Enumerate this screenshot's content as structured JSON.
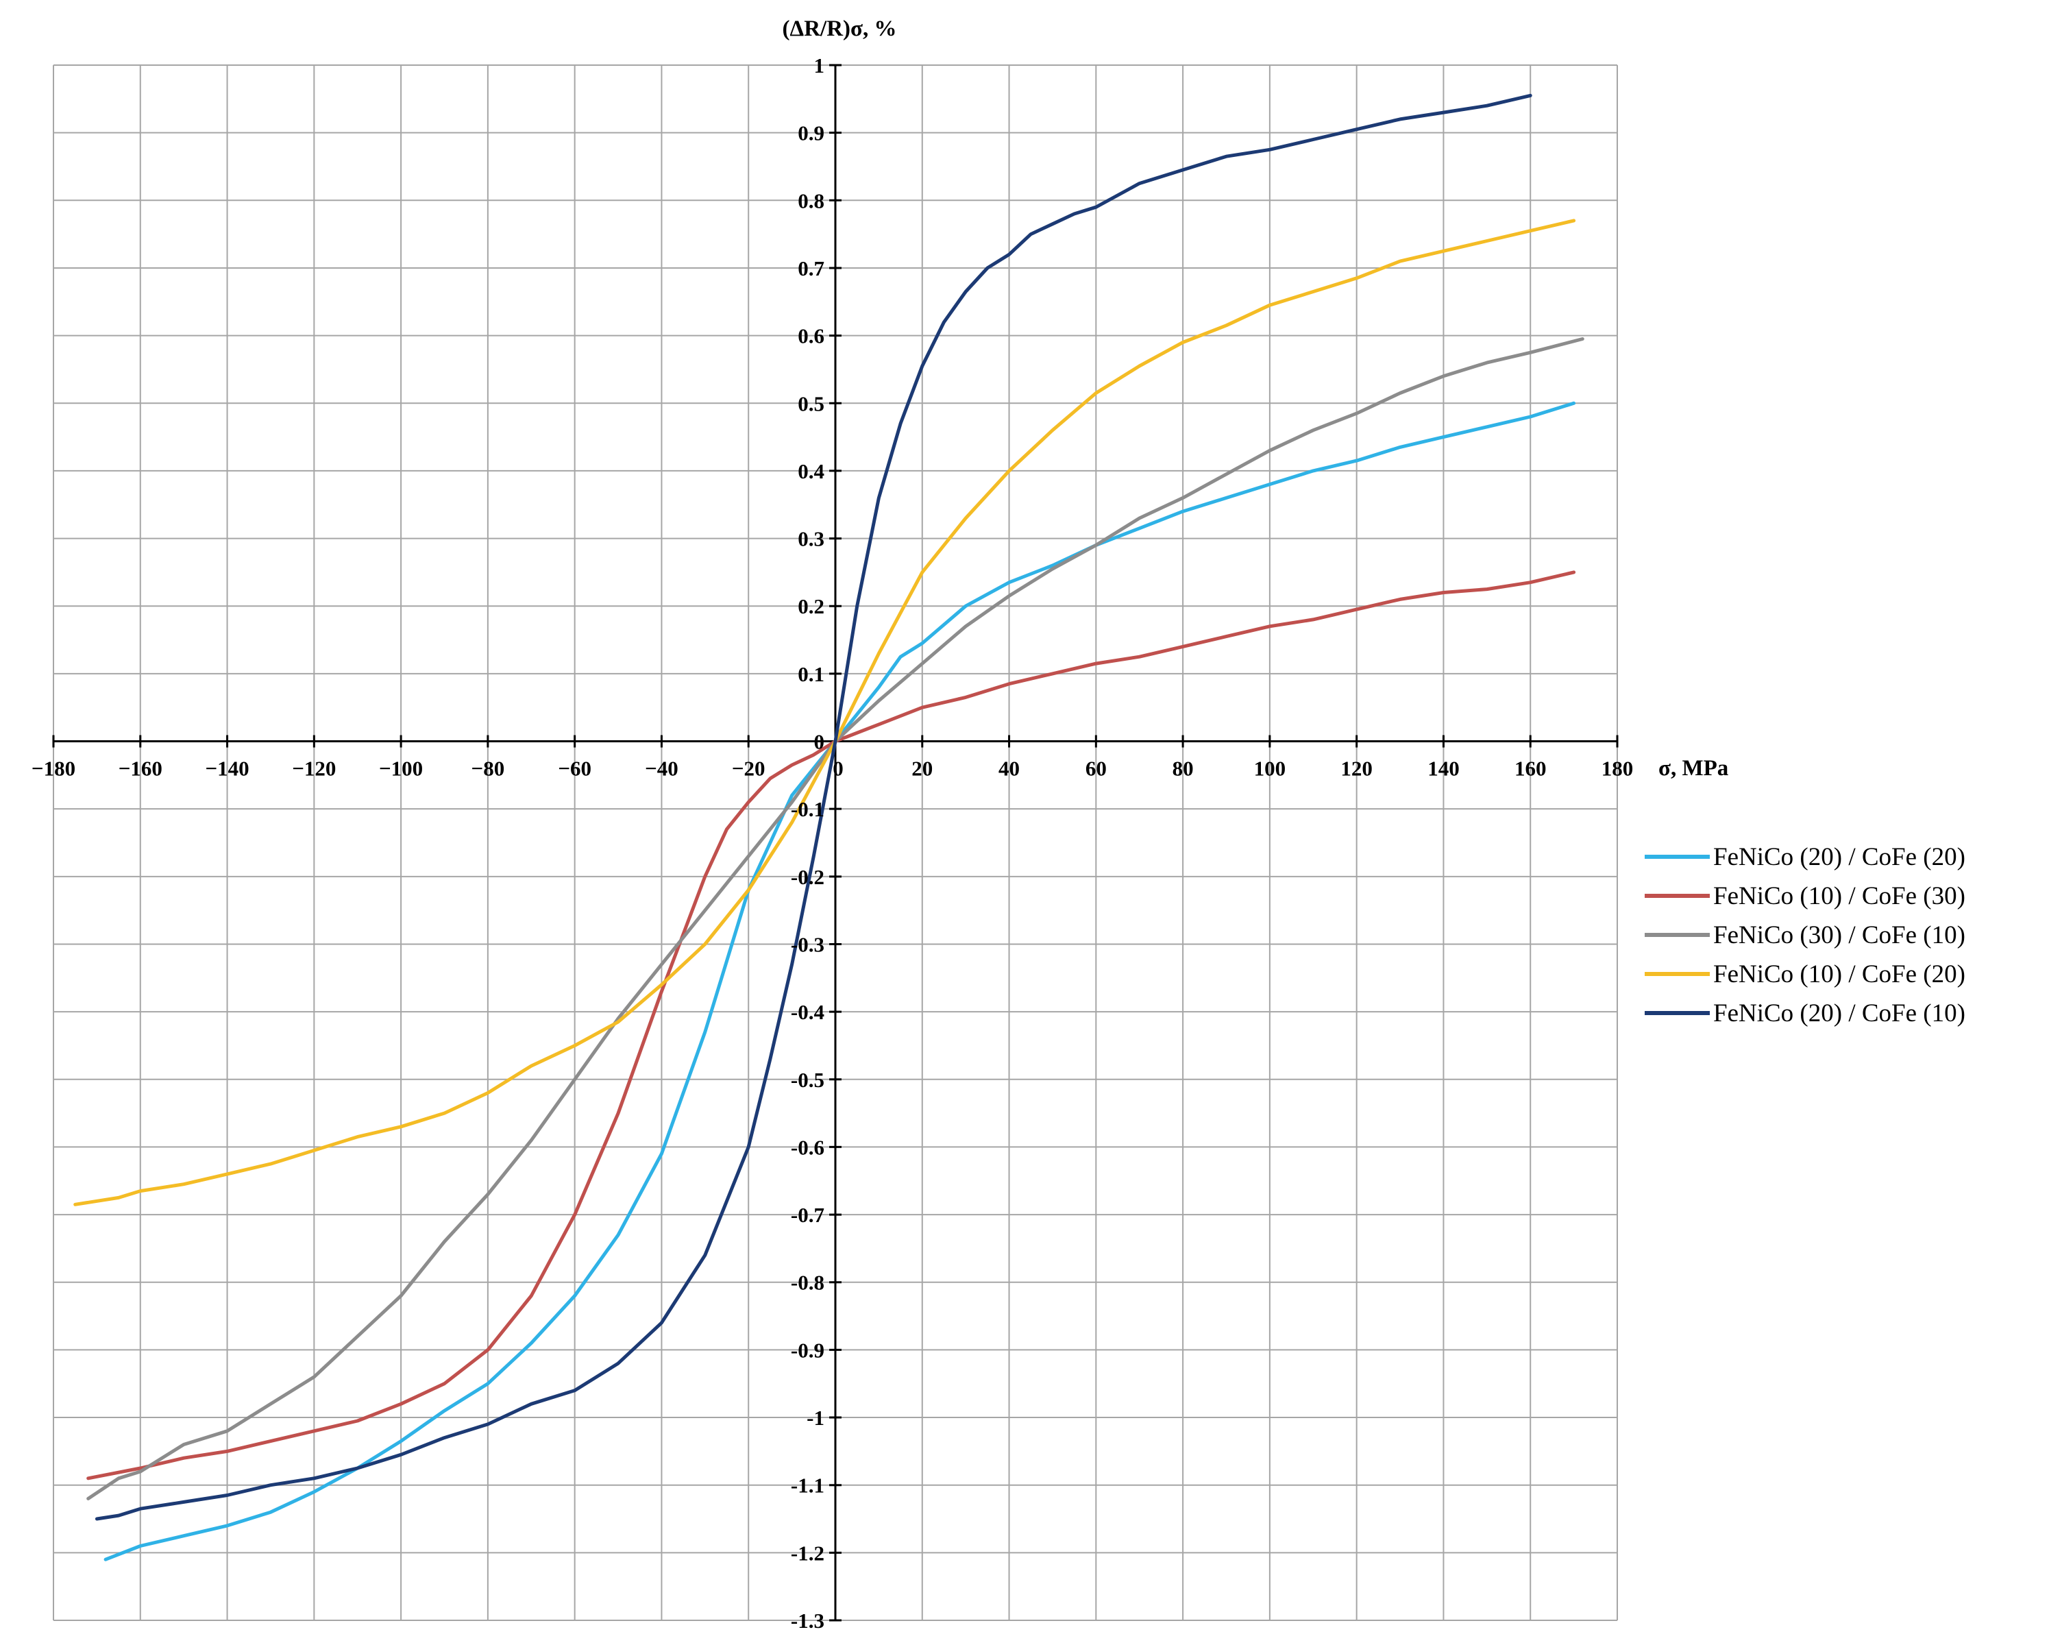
{
  "chart_data": {
    "type": "line",
    "ylabel": "(ΔR/R)σ, %",
    "xlabel": "σ, MPa",
    "xlim": [
      -180,
      180
    ],
    "ylim": [
      -1.3,
      1
    ],
    "grid": true,
    "legend_position": "right",
    "x_ticks": [
      {
        "value": -180,
        "label": "−180"
      },
      {
        "value": -160,
        "label": "−160"
      },
      {
        "value": -140,
        "label": "−140"
      },
      {
        "value": -120,
        "label": "−120"
      },
      {
        "value": -100,
        "label": "−100"
      },
      {
        "value": -80,
        "label": "−80"
      },
      {
        "value": -60,
        "label": "−60"
      },
      {
        "value": -40,
        "label": "−40"
      },
      {
        "value": -20,
        "label": "−20"
      },
      {
        "value": 0,
        "label": "0"
      },
      {
        "value": 20,
        "label": "20"
      },
      {
        "value": 40,
        "label": "40"
      },
      {
        "value": 60,
        "label": "60"
      },
      {
        "value": 80,
        "label": "80"
      },
      {
        "value": 100,
        "label": "100"
      },
      {
        "value": 120,
        "label": "120"
      },
      {
        "value": 140,
        "label": "140"
      },
      {
        "value": 160,
        "label": "160"
      },
      {
        "value": 180,
        "label": "180"
      }
    ],
    "y_ticks": [
      {
        "value": 1,
        "label": "1"
      },
      {
        "value": 0.9,
        "label": "0.9"
      },
      {
        "value": 0.8,
        "label": "0.8"
      },
      {
        "value": 0.7,
        "label": "0.7"
      },
      {
        "value": 0.6,
        "label": "0.6"
      },
      {
        "value": 0.5,
        "label": "0.5"
      },
      {
        "value": 0.4,
        "label": "0.4"
      },
      {
        "value": 0.3,
        "label": "0.3"
      },
      {
        "value": 0.2,
        "label": "0.2"
      },
      {
        "value": 0.1,
        "label": "0.1"
      },
      {
        "value": 0,
        "label": "0"
      },
      {
        "value": -0.1,
        "label": "-0.1"
      },
      {
        "value": -0.2,
        "label": "-0.2"
      },
      {
        "value": -0.3,
        "label": "-0.3"
      },
      {
        "value": -0.4,
        "label": "-0.4"
      },
      {
        "value": -0.5,
        "label": "-0.5"
      },
      {
        "value": -0.6,
        "label": "-0.6"
      },
      {
        "value": -0.7,
        "label": "-0.7"
      },
      {
        "value": -0.8,
        "label": "-0.8"
      },
      {
        "value": -0.9,
        "label": "-0.9"
      },
      {
        "value": -1,
        "label": "-1"
      },
      {
        "value": -1.1,
        "label": "-1.1"
      },
      {
        "value": -1.2,
        "label": "-1.2"
      },
      {
        "value": -1.3,
        "label": "-1.3"
      }
    ],
    "series": [
      {
        "name": "FeNiCo (20) / CoFe (20)",
        "color": "#2fb2e6",
        "x": [
          -168,
          -160,
          -150,
          -140,
          -130,
          -120,
          -110,
          -100,
          -90,
          -80,
          -70,
          -60,
          -50,
          -40,
          -30,
          -20,
          -10,
          0,
          10,
          15,
          20,
          30,
          40,
          50,
          60,
          70,
          80,
          90,
          100,
          110,
          120,
          130,
          140,
          150,
          160,
          170
        ],
        "y": [
          -1.21,
          -1.19,
          -1.175,
          -1.16,
          -1.14,
          -1.11,
          -1.075,
          -1.035,
          -0.99,
          -0.95,
          -0.89,
          -0.82,
          -0.73,
          -0.61,
          -0.43,
          -0.22,
          -0.08,
          0,
          0.08,
          0.125,
          0.145,
          0.2,
          0.235,
          0.26,
          0.29,
          0.315,
          0.34,
          0.36,
          0.38,
          0.4,
          0.415,
          0.435,
          0.45,
          0.465,
          0.48,
          0.5
        ]
      },
      {
        "name": "FeNiCo (10) / CoFe (30)",
        "color": "#c0504d",
        "x": [
          -172,
          -160,
          -150,
          -140,
          -130,
          -120,
          -110,
          -100,
          -90,
          -80,
          -70,
          -60,
          -50,
          -40,
          -30,
          -25,
          -20,
          -15,
          -10,
          -5,
          0,
          10,
          20,
          30,
          40,
          50,
          60,
          70,
          80,
          90,
          100,
          110,
          120,
          130,
          140,
          150,
          160,
          170
        ],
        "y": [
          -1.09,
          -1.075,
          -1.06,
          -1.05,
          -1.035,
          -1.02,
          -1.005,
          -0.98,
          -0.95,
          -0.9,
          -0.82,
          -0.7,
          -0.55,
          -0.37,
          -0.2,
          -0.13,
          -0.09,
          -0.055,
          -0.035,
          -0.02,
          0,
          0.025,
          0.05,
          0.065,
          0.085,
          0.1,
          0.115,
          0.125,
          0.14,
          0.155,
          0.17,
          0.18,
          0.195,
          0.21,
          0.22,
          0.225,
          0.235,
          0.25
        ]
      },
      {
        "name": "FeNiCo (30) / CoFe (10)",
        "color": "#8c8c8c",
        "x": [
          -172,
          -165,
          -160,
          -150,
          -140,
          -130,
          -120,
          -110,
          -100,
          -90,
          -80,
          -70,
          -60,
          -50,
          -40,
          -30,
          -20,
          -10,
          0,
          10,
          20,
          30,
          40,
          50,
          60,
          70,
          80,
          90,
          100,
          110,
          120,
          130,
          140,
          150,
          160,
          172
        ],
        "y": [
          -1.12,
          -1.09,
          -1.08,
          -1.04,
          -1.02,
          -0.98,
          -0.94,
          -0.88,
          -0.82,
          -0.74,
          -0.67,
          -0.59,
          -0.5,
          -0.41,
          -0.33,
          -0.25,
          -0.17,
          -0.09,
          0,
          0.06,
          0.115,
          0.17,
          0.215,
          0.255,
          0.29,
          0.33,
          0.36,
          0.395,
          0.43,
          0.46,
          0.485,
          0.515,
          0.54,
          0.56,
          0.575,
          0.595
        ]
      },
      {
        "name": "FeNiCo (10) / CoFe (20)",
        "color": "#f4bc25",
        "x": [
          -175,
          -165,
          -160,
          -150,
          -140,
          -130,
          -120,
          -110,
          -100,
          -90,
          -80,
          -70,
          -60,
          -50,
          -40,
          -30,
          -20,
          -10,
          0,
          10,
          20,
          30,
          40,
          50,
          60,
          70,
          80,
          90,
          100,
          110,
          120,
          130,
          140,
          150,
          160,
          170
        ],
        "y": [
          -0.685,
          -0.675,
          -0.665,
          -0.655,
          -0.64,
          -0.625,
          -0.605,
          -0.585,
          -0.57,
          -0.55,
          -0.52,
          -0.48,
          -0.45,
          -0.415,
          -0.36,
          -0.3,
          -0.22,
          -0.12,
          0,
          0.13,
          0.25,
          0.33,
          0.4,
          0.46,
          0.515,
          0.555,
          0.59,
          0.615,
          0.645,
          0.665,
          0.685,
          0.71,
          0.725,
          0.74,
          0.755,
          0.77
        ]
      },
      {
        "name": "FeNiCo (20) / CoFe (10)",
        "color": "#1c3a74",
        "x": [
          -170,
          -165,
          -160,
          -150,
          -140,
          -130,
          -120,
          -110,
          -100,
          -90,
          -80,
          -70,
          -60,
          -50,
          -40,
          -30,
          -20,
          -15,
          -10,
          -5,
          0,
          5,
          10,
          15,
          20,
          25,
          30,
          35,
          40,
          45,
          50,
          55,
          60,
          70,
          80,
          90,
          100,
          110,
          120,
          130,
          140,
          150,
          160
        ],
        "y": [
          -1.15,
          -1.145,
          -1.135,
          -1.125,
          -1.115,
          -1.1,
          -1.09,
          -1.075,
          -1.055,
          -1.03,
          -1.01,
          -0.98,
          -0.96,
          -0.92,
          -0.86,
          -0.76,
          -0.6,
          -0.47,
          -0.33,
          -0.17,
          0,
          0.2,
          0.36,
          0.47,
          0.555,
          0.62,
          0.665,
          0.7,
          0.72,
          0.75,
          0.765,
          0.78,
          0.79,
          0.825,
          0.845,
          0.865,
          0.875,
          0.89,
          0.905,
          0.92,
          0.93,
          0.94,
          0.955
        ]
      }
    ]
  }
}
